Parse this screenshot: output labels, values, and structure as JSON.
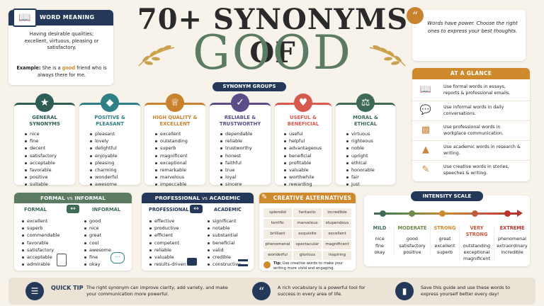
{
  "title_line1": "70+ SYNONYMS OF",
  "title_line2": "GOOD",
  "word_meaning": {
    "header": "WORD MEANING",
    "definition": "Having desirable qualities; excellent, virtuous, pleasing or satisfactory.",
    "example_label": "Example:",
    "example_pre": "She is a",
    "example_word": "good",
    "example_post": "friend who is always there for me."
  },
  "quote": {
    "text": "Words have power. Choose the right ones to express your best thoughts.",
    "icon": "quote-icon"
  },
  "synonym_groups_label": "SYNONYM GROUPS",
  "groups": [
    {
      "title": "GENERAL SYNONYMS",
      "color": "#2f5d55",
      "icon": "star-icon",
      "words": [
        "nice",
        "fine",
        "decent",
        "satisfactory",
        "acceptable",
        "favorable",
        "positive",
        "suitable"
      ]
    },
    {
      "title": "POSITIVE & PLEASANT",
      "color": "#2f7f86",
      "icon": "diamond-icon",
      "words": [
        "pleasant",
        "lovely",
        "delightful",
        "enjoyable",
        "pleasing",
        "charming",
        "wonderful",
        "awesome"
      ]
    },
    {
      "title": "HIGH QUALITY & EXCELLENT",
      "color": "#c9822e",
      "icon": "trophy-icon",
      "words": [
        "excellent",
        "outstanding",
        "superb",
        "magnificent",
        "exceptional",
        "remarkable",
        "marvelous",
        "impeccable"
      ]
    },
    {
      "title": "RELIABLE & TRUSTWORTHY",
      "color": "#5c4d87",
      "icon": "check-icon",
      "words": [
        "dependable",
        "reliable",
        "trustworthy",
        "honest",
        "faithful",
        "true",
        "loyal",
        "sincere"
      ]
    },
    {
      "title": "USEFUL & BENEFICIAL",
      "color": "#d85a4e",
      "icon": "heart-icon",
      "words": [
        "useful",
        "helpful",
        "advantageous",
        "beneficial",
        "profitable",
        "valuable",
        "worthwhile",
        "rewarding"
      ]
    },
    {
      "title": "MORAL & ETHICAL",
      "color": "#3f6a57",
      "icon": "scales-icon",
      "words": [
        "virtuous",
        "righteous",
        "noble",
        "upright",
        "ethical",
        "honorable",
        "fair",
        "just"
      ]
    }
  ],
  "glance": {
    "header": "AT A GLANCE",
    "items": [
      {
        "icon": "book-icon",
        "text": "Use formal words in essays, reports & professional emails."
      },
      {
        "icon": "chat-icon",
        "text": "Use informal words in daily conversations."
      },
      {
        "icon": "briefcase-icon",
        "text": "Use professional words in workplace communication."
      },
      {
        "icon": "graduation-cap-icon",
        "text": "Use academic words in research & writing."
      },
      {
        "icon": "pen-icon",
        "text": "Use creative words in stories, speeches & writing."
      }
    ]
  },
  "formal_informal": {
    "header_a": "FORMAL",
    "header_vs": "vs",
    "header_b": "INFORMAL",
    "col_a": "FORMAL",
    "col_b": "INFORMAL",
    "formal": [
      "excellent",
      "superb",
      "commendable",
      "favorable",
      "satisfactory",
      "acceptable",
      "admirable"
    ],
    "informal": [
      "good",
      "nice",
      "great",
      "cool",
      "awesome",
      "fine",
      "okay"
    ]
  },
  "prof_academic": {
    "header_a": "PROFESSIONAL",
    "header_vs": "vs",
    "header_b": "ACADEMIC",
    "col_a": "PROFESSIONAL",
    "col_b": "ACADEMIC",
    "professional": [
      "effective",
      "productive",
      "efficient",
      "competent",
      "reliable",
      "valuable",
      "results-driven"
    ],
    "academic": [
      "significant",
      "notable",
      "substantial",
      "beneficial",
      "valid",
      "credible",
      "constructive"
    ]
  },
  "creative": {
    "header": "CREATIVE ALTERNATIVES",
    "words": [
      "splendid",
      "fantastic",
      "incredible",
      "terrific",
      "marvelous",
      "stupendous",
      "brilliant",
      "exquisite",
      "excellent",
      "phenomenal",
      "spectacular",
      "magnificent",
      "wonderful",
      "glorious",
      "inspiring"
    ],
    "tip_label": "Tip:",
    "tip": "Use creative words to make your writing more vivid and engaging."
  },
  "intensity": {
    "header": "INTENSITY SCALE",
    "levels": [
      {
        "name": "MILD",
        "color": "#3f6a57",
        "words": [
          "nice",
          "fine",
          "okay"
        ]
      },
      {
        "name": "MODERATE",
        "color": "#6c8a4a",
        "words": [
          "good",
          "satisfactory",
          "positive"
        ]
      },
      {
        "name": "STRONG",
        "color": "#d08a2e",
        "words": [
          "great",
          "excellent",
          "superb"
        ]
      },
      {
        "name": "VERY STRONG",
        "color": "#c45a3d",
        "words": [
          "outstanding",
          "exceptional",
          "magnificent"
        ]
      },
      {
        "name": "EXTREME",
        "color": "#b8322e",
        "words": [
          "phenomenal",
          "extraordinary",
          "incredible"
        ]
      }
    ]
  },
  "footer": {
    "tip_label": "QUICK TIP",
    "tip_text": "The right synonym can improve clarity, add variety, and make your communication more powerful.",
    "quote_text": "A rich vocabulary is a powerful tool for success in every area of life.",
    "save_text": "Save this guide and use these words to express yourself better every day!"
  }
}
